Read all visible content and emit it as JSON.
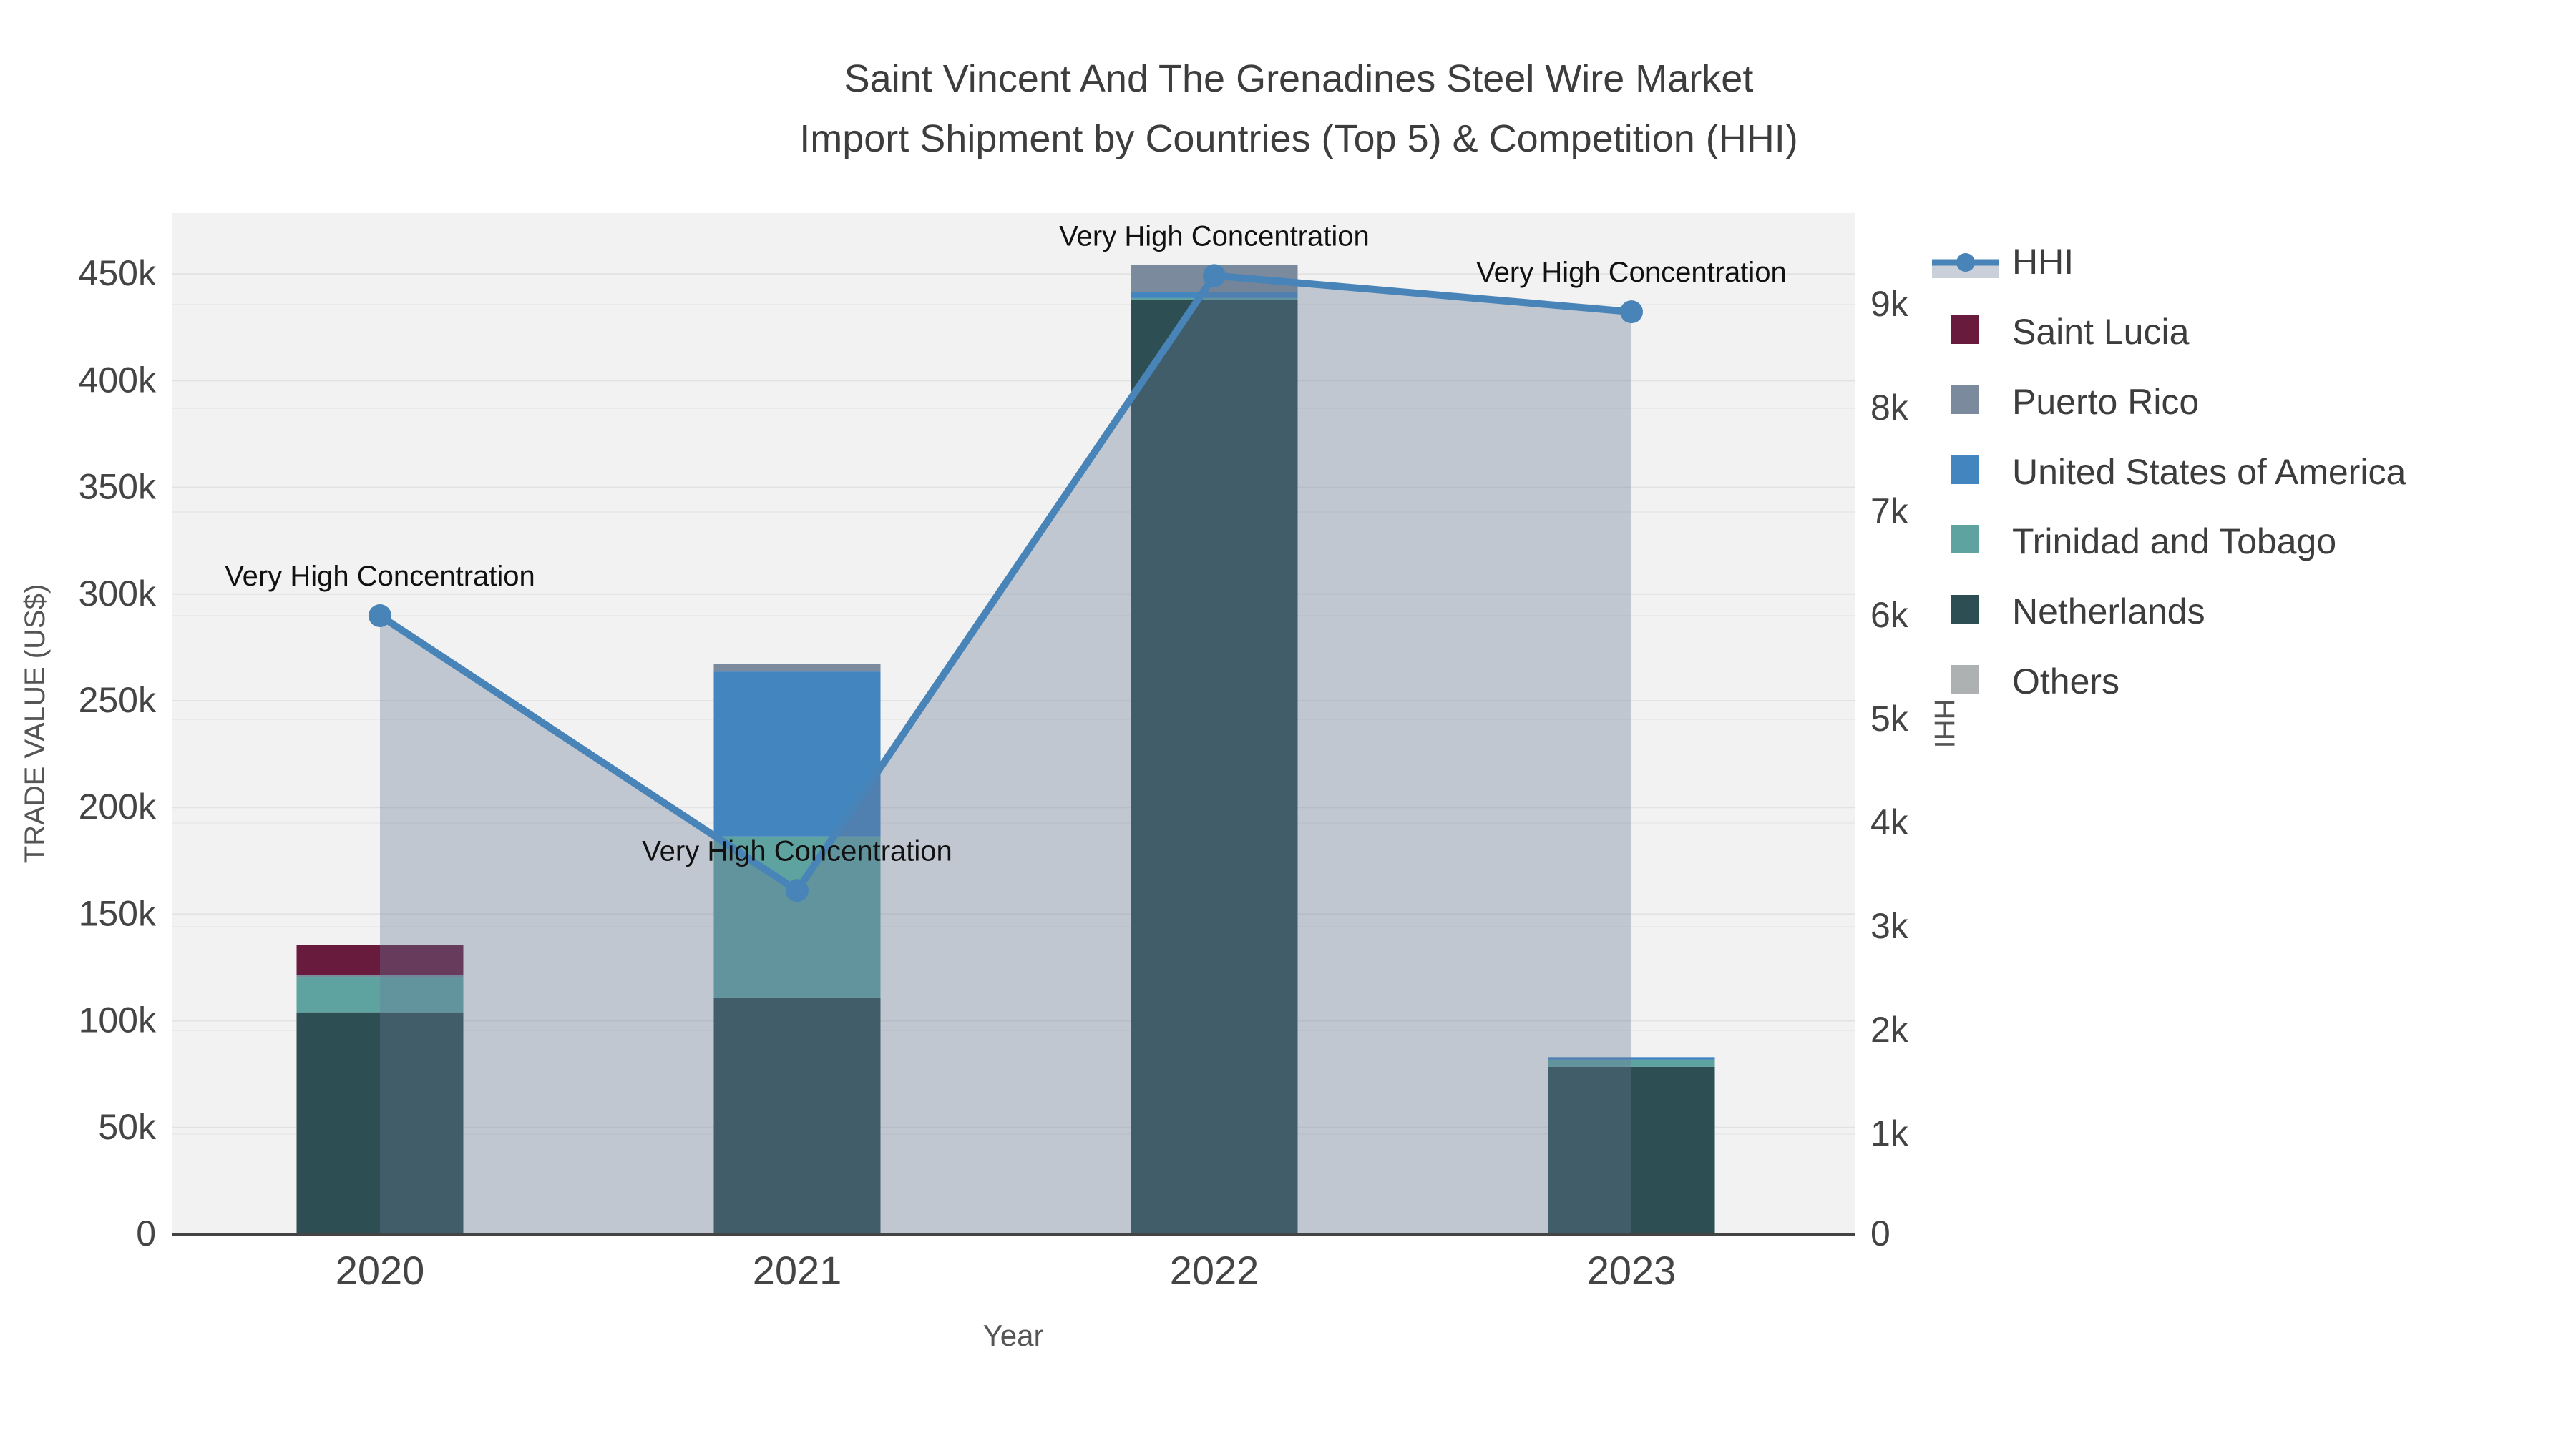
{
  "chart": {
    "title_line1": "Saint Vincent And The Grenadines Steel Wire Market",
    "title_line2": "Import Shipment by Countries (Top 5) & Competition (HHI)",
    "xlabel": "Year",
    "ylabel": "TRADE VALUE (US$)",
    "y2label": "HHI"
  },
  "chart_data": {
    "type": "bar+line",
    "categories": [
      "2020",
      "2021",
      "2022",
      "2023"
    ],
    "bar_unit": "US$",
    "stacked": true,
    "series": [
      {
        "name": "Saint Lucia",
        "color": "#681b3d",
        "values": [
          14200,
          0,
          0,
          0
        ]
      },
      {
        "name": "Puerto Rico",
        "color": "#7b8a9c",
        "values": [
          1100,
          3400,
          12700,
          0
        ]
      },
      {
        "name": "United States of America",
        "color": "#4285bf",
        "values": [
          0,
          77300,
          2700,
          1200
        ]
      },
      {
        "name": "Trinidad and Tobago",
        "color": "#5fa3a0",
        "values": [
          16300,
          75400,
          900,
          3300
        ]
      },
      {
        "name": "Netherlands",
        "color": "#2d4f53",
        "values": [
          104000,
          111000,
          437800,
          78500
        ]
      },
      {
        "name": "Others",
        "color": "#aeb1b1",
        "values": [
          0,
          0,
          0,
          0
        ]
      }
    ],
    "line_series": {
      "name": "HHI",
      "color": "#4884b8",
      "area_fill": "rgba(104,120,150,0.35)",
      "values": [
        6000,
        3350,
        9280,
        8930
      ]
    },
    "annotations": [
      {
        "category": "2020",
        "text": "Very High Concentration"
      },
      {
        "category": "2021",
        "text": "Very High Concentration"
      },
      {
        "category": "2022",
        "text": "Very High Concentration"
      },
      {
        "category": "2023",
        "text": "Very High Concentration"
      }
    ],
    "y_axis": {
      "min": 0,
      "max": 450000,
      "tick_step": 50000,
      "tick_labels": [
        "0",
        "50k",
        "100k",
        "150k",
        "200k",
        "250k",
        "300k",
        "350k",
        "400k",
        "450k"
      ]
    },
    "y2_axis": {
      "min": 0,
      "max": 9000,
      "tick_step": 1000,
      "tick_labels": [
        "0",
        "1k",
        "2k",
        "3k",
        "4k",
        "5k",
        "6k",
        "7k",
        "8k",
        "9k"
      ]
    },
    "legend_position": "right",
    "grid": true,
    "plot_bg": "#f2f2f2",
    "grid_color_left": "#e2e2e2",
    "grid_color_right": "#eaeaea",
    "axis_line_color": "#444444",
    "tick_color": "#444444",
    "title_color": "#3d3d3d",
    "annotation_color": "#111111"
  }
}
